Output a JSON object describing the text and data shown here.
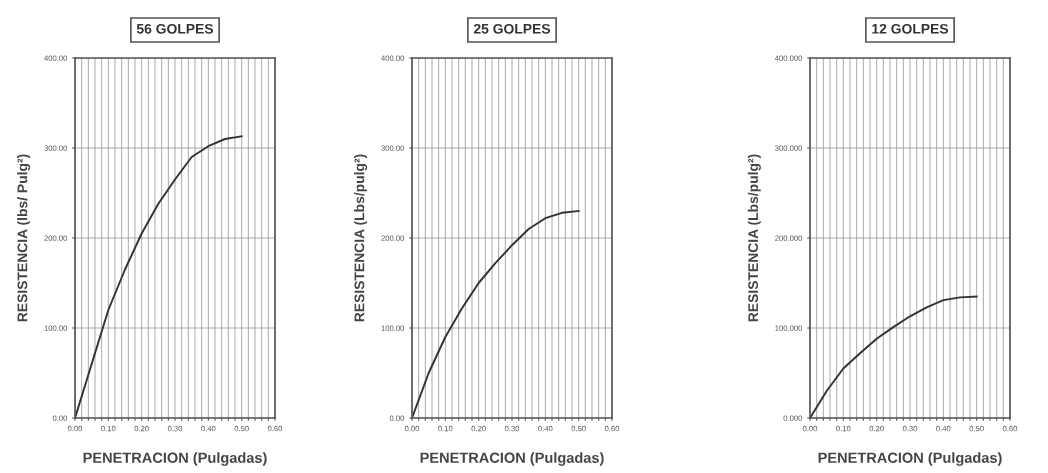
{
  "chart_data": [
    {
      "type": "line",
      "title": "56 GOLPES",
      "xlabel": "PENETRACION (Pulgadas)",
      "ylabel": "RESISTENCIA (lbs/ Pulg²)",
      "x": [
        0,
        0.05,
        0.1,
        0.15,
        0.2,
        0.25,
        0.3,
        0.35,
        0.4,
        0.45,
        0.5
      ],
      "series": [
        {
          "color": "#333333",
          "values": [
            0,
            60,
            120,
            165,
            205,
            238,
            265,
            290,
            302,
            310,
            313
          ]
        }
      ],
      "xlim": [
        0,
        0.6
      ],
      "ylim": [
        0,
        400
      ],
      "xticks": [
        {
          "value": 0,
          "label": "0.00"
        },
        {
          "value": 0.02,
          "label": null
        },
        {
          "value": 0.04,
          "label": null
        },
        {
          "value": 0.06,
          "label": null
        },
        {
          "value": 0.08,
          "label": null
        },
        {
          "value": 0.1,
          "label": "0.10"
        },
        {
          "value": 0.12,
          "label": null
        },
        {
          "value": 0.14,
          "label": null
        },
        {
          "value": 0.16,
          "label": null
        },
        {
          "value": 0.18,
          "label": null
        },
        {
          "value": 0.2,
          "label": "0.20"
        },
        {
          "value": 0.22,
          "label": null
        },
        {
          "value": 0.24,
          "label": null
        },
        {
          "value": 0.26,
          "label": null
        },
        {
          "value": 0.28,
          "label": null
        },
        {
          "value": 0.3,
          "label": "0.30"
        },
        {
          "value": 0.32,
          "label": null
        },
        {
          "value": 0.34,
          "label": null
        },
        {
          "value": 0.36,
          "label": null
        },
        {
          "value": 0.38,
          "label": null
        },
        {
          "value": 0.4,
          "label": "0.40"
        },
        {
          "value": 0.42,
          "label": null
        },
        {
          "value": 0.44,
          "label": null
        },
        {
          "value": 0.46,
          "label": null
        },
        {
          "value": 0.48,
          "label": null
        },
        {
          "value": 0.5,
          "label": "0.50"
        },
        {
          "value": 0.52,
          "label": null
        },
        {
          "value": 0.54,
          "label": null
        },
        {
          "value": 0.56,
          "label": null
        },
        {
          "value": 0.58,
          "label": null
        },
        {
          "value": 0.6,
          "label": "0.60"
        }
      ],
      "yticks": [
        {
          "value": 0,
          "label": "0.00"
        },
        {
          "value": 100,
          "label": "100.00"
        },
        {
          "value": 200,
          "label": "200.00"
        },
        {
          "value": 300,
          "label": "300.00"
        },
        {
          "value": 400,
          "label": "400.00"
        }
      ],
      "grid": true,
      "marker": "none",
      "line_style": "solid"
    },
    {
      "type": "line",
      "title": "25 GOLPES",
      "xlabel": "PENETRACION (Pulgadas)",
      "ylabel": "RESISTENCIA (Lbs/pulg²)",
      "x": [
        0,
        0.05,
        0.1,
        0.15,
        0.2,
        0.25,
        0.3,
        0.35,
        0.4,
        0.45,
        0.5
      ],
      "series": [
        {
          "color": "#333333",
          "values": [
            0,
            50,
            90,
            122,
            150,
            172,
            192,
            210,
            222,
            228,
            230
          ]
        }
      ],
      "xlim": [
        0,
        0.6
      ],
      "ylim": [
        0,
        400
      ],
      "xticks": [
        {
          "value": 0,
          "label": "0.00"
        },
        {
          "value": 0.02,
          "label": null
        },
        {
          "value": 0.04,
          "label": null
        },
        {
          "value": 0.06,
          "label": null
        },
        {
          "value": 0.08,
          "label": null
        },
        {
          "value": 0.1,
          "label": "0.10"
        },
        {
          "value": 0.12,
          "label": null
        },
        {
          "value": 0.14,
          "label": null
        },
        {
          "value": 0.16,
          "label": null
        },
        {
          "value": 0.18,
          "label": null
        },
        {
          "value": 0.2,
          "label": "0.20"
        },
        {
          "value": 0.22,
          "label": null
        },
        {
          "value": 0.24,
          "label": null
        },
        {
          "value": 0.26,
          "label": null
        },
        {
          "value": 0.28,
          "label": null
        },
        {
          "value": 0.3,
          "label": "0.30"
        },
        {
          "value": 0.32,
          "label": null
        },
        {
          "value": 0.34,
          "label": null
        },
        {
          "value": 0.36,
          "label": null
        },
        {
          "value": 0.38,
          "label": null
        },
        {
          "value": 0.4,
          "label": "0.40"
        },
        {
          "value": 0.42,
          "label": null
        },
        {
          "value": 0.44,
          "label": null
        },
        {
          "value": 0.46,
          "label": null
        },
        {
          "value": 0.48,
          "label": null
        },
        {
          "value": 0.5,
          "label": "0.50"
        },
        {
          "value": 0.52,
          "label": null
        },
        {
          "value": 0.54,
          "label": null
        },
        {
          "value": 0.56,
          "label": null
        },
        {
          "value": 0.58,
          "label": null
        },
        {
          "value": 0.6,
          "label": "0.60"
        }
      ],
      "yticks": [
        {
          "value": 0,
          "label": "0.00"
        },
        {
          "value": 100,
          "label": "100.00"
        },
        {
          "value": 200,
          "label": "200.00"
        },
        {
          "value": 300,
          "label": "300.00"
        },
        {
          "value": 400,
          "label": "400.00"
        }
      ],
      "grid": true,
      "marker": "none",
      "line_style": "solid"
    },
    {
      "type": "line",
      "title": "12 GOLPES",
      "xlabel": "PENETRACION (Pulgadas)",
      "ylabel": "RESISTENCIA (Lbs/pulg²)",
      "x": [
        0,
        0.05,
        0.1,
        0.15,
        0.2,
        0.25,
        0.3,
        0.35,
        0.4,
        0.45,
        0.5
      ],
      "series": [
        {
          "color": "#333333",
          "values": [
            0,
            30,
            55,
            72,
            88,
            101,
            113,
            123,
            131,
            134,
            135
          ]
        }
      ],
      "xlim": [
        0,
        0.6
      ],
      "ylim": [
        0,
        400
      ],
      "xticks": [
        {
          "value": 0,
          "label": "0.00"
        },
        {
          "value": 0.02,
          "label": null
        },
        {
          "value": 0.04,
          "label": null
        },
        {
          "value": 0.06,
          "label": null
        },
        {
          "value": 0.08,
          "label": null
        },
        {
          "value": 0.1,
          "label": "0.10"
        },
        {
          "value": 0.12,
          "label": null
        },
        {
          "value": 0.14,
          "label": null
        },
        {
          "value": 0.16,
          "label": null
        },
        {
          "value": 0.18,
          "label": null
        },
        {
          "value": 0.2,
          "label": "0.20"
        },
        {
          "value": 0.22,
          "label": null
        },
        {
          "value": 0.24,
          "label": null
        },
        {
          "value": 0.26,
          "label": null
        },
        {
          "value": 0.28,
          "label": null
        },
        {
          "value": 0.3,
          "label": "0.30"
        },
        {
          "value": 0.32,
          "label": null
        },
        {
          "value": 0.34,
          "label": null
        },
        {
          "value": 0.36,
          "label": null
        },
        {
          "value": 0.38,
          "label": null
        },
        {
          "value": 0.4,
          "label": "0.40"
        },
        {
          "value": 0.42,
          "label": null
        },
        {
          "value": 0.44,
          "label": null
        },
        {
          "value": 0.46,
          "label": null
        },
        {
          "value": 0.48,
          "label": null
        },
        {
          "value": 0.5,
          "label": "0.50"
        },
        {
          "value": 0.52,
          "label": null
        },
        {
          "value": 0.54,
          "label": null
        },
        {
          "value": 0.56,
          "label": null
        },
        {
          "value": 0.58,
          "label": null
        },
        {
          "value": 0.6,
          "label": "0.60"
        }
      ],
      "yticks": [
        {
          "value": 0,
          "label": "0.000"
        },
        {
          "value": 100,
          "label": "100.000"
        },
        {
          "value": 200,
          "label": "200.000"
        },
        {
          "value": 300,
          "label": "300.000"
        },
        {
          "value": 400,
          "label": "400.000"
        }
      ],
      "grid": true,
      "marker": "none",
      "line_style": "solid"
    }
  ]
}
